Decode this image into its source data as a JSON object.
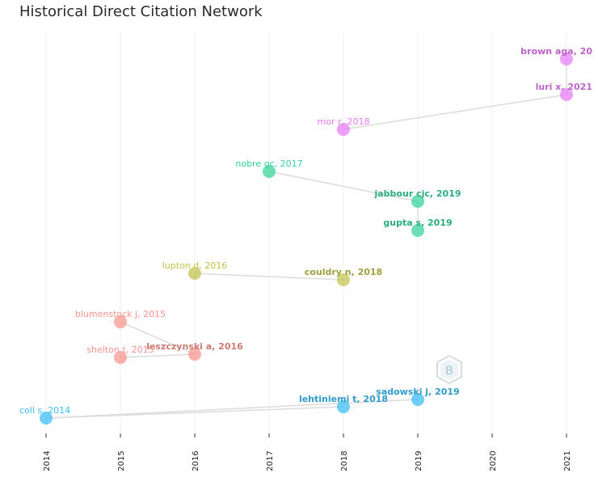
{
  "chart_data": {
    "type": "scatter",
    "title": "Historical Direct Citation Network",
    "xlabel": "",
    "ylabel": "",
    "x_ticks": [
      "2014",
      "2015",
      "2016",
      "2017",
      "2018",
      "2019",
      "2020",
      "2021"
    ],
    "grid": true,
    "legend": "none",
    "nodes": [
      {
        "id": "brown",
        "label": "brown aga, 20",
        "year": 2021,
        "rank": 1,
        "color": "#e879f9",
        "bold": true
      },
      {
        "id": "luri",
        "label": "luri x, 2021",
        "year": 2021,
        "rank": 2,
        "color": "#e879f9",
        "bold": true
      },
      {
        "id": "mor",
        "label": "mor r, 2018",
        "year": 2018,
        "rank": 3,
        "color": "#e879f9",
        "bold": false
      },
      {
        "id": "nobre",
        "label": "nobre gc, 2017",
        "year": 2017,
        "rank": 4,
        "color": "#34d399",
        "bold": false
      },
      {
        "id": "jabbour",
        "label": "jabbour cjc, 2019",
        "year": 2019,
        "rank": 5,
        "color": "#34d399",
        "bold": true
      },
      {
        "id": "gupta",
        "label": "gupta s, 2019",
        "year": 2019,
        "rank": 6,
        "color": "#34d399",
        "bold": true
      },
      {
        "id": "lupton",
        "label": "lupton d, 2016",
        "year": 2016,
        "rank": 7,
        "color": "#bfc34a",
        "bold": false
      },
      {
        "id": "couldry",
        "label": "couldry n, 2018",
        "year": 2018,
        "rank": 8,
        "color": "#bfc34a",
        "bold": true
      },
      {
        "id": "blumenstock",
        "label": "blumenstock j, 2015",
        "year": 2015,
        "rank": 9,
        "color": "#f8938a",
        "bold": false
      },
      {
        "id": "leszczynski",
        "label": "leszczynski a, 2016",
        "year": 2016,
        "rank": 10,
        "color": "#f8938a",
        "bold": true
      },
      {
        "id": "shelton",
        "label": "shelton t, 2015",
        "year": 2015,
        "rank": 11,
        "color": "#f8938a",
        "bold": false
      },
      {
        "id": "sadowski",
        "label": "sadowski j, 2019",
        "year": 2019,
        "rank": 12,
        "color": "#38bdf8",
        "bold": true
      },
      {
        "id": "lehtiniemi",
        "label": "lehtiniemi t, 2018",
        "year": 2018,
        "rank": 13,
        "color": "#38bdf8",
        "bold": true
      },
      {
        "id": "coll",
        "label": "coll s, 2014",
        "year": 2014,
        "rank": 14,
        "color": "#38bdf8",
        "bold": false
      }
    ],
    "edges": [
      [
        "brown",
        "luri"
      ],
      [
        "luri",
        "mor"
      ],
      [
        "nobre",
        "jabbour"
      ],
      [
        "jabbour",
        "gupta"
      ],
      [
        "lupton",
        "couldry"
      ],
      [
        "blumenstock",
        "leszczynski"
      ],
      [
        "shelton",
        "leszczynski"
      ],
      [
        "coll",
        "sadowski"
      ],
      [
        "coll",
        "lehtiniemi"
      ]
    ]
  },
  "watermark": {
    "icon": "bibliometrix-hexagon-logo"
  }
}
